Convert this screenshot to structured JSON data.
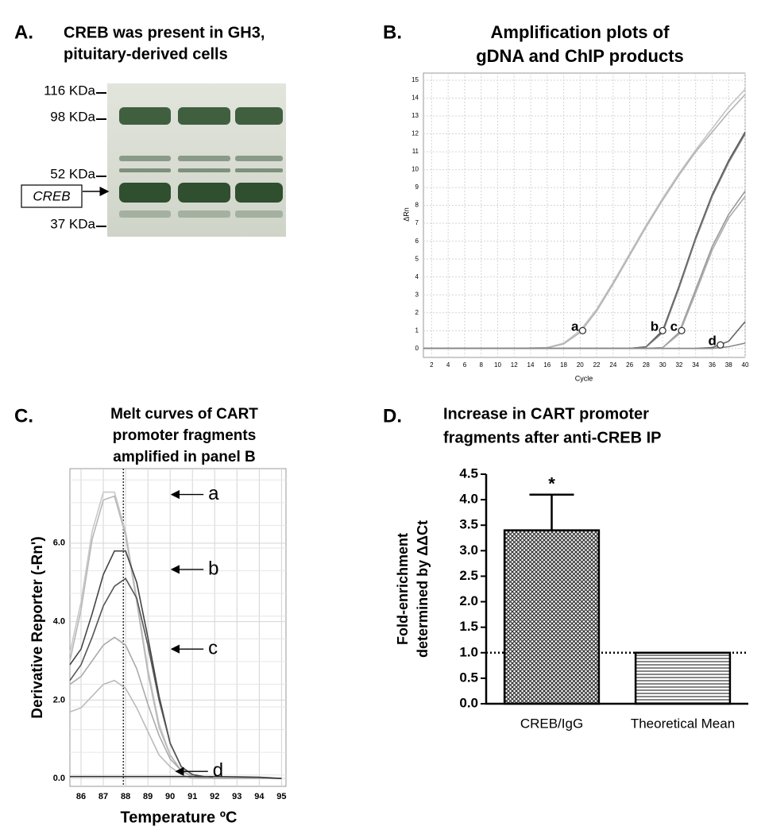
{
  "chart_data": [
    {
      "type": "blot",
      "panel": "A.",
      "title": [
        "CREB was present in GH3,",
        "pituitary-derived cells"
      ],
      "markers": [
        "116 KDa",
        "98 KDa",
        "52 KDa",
        "37 KDa"
      ],
      "band_label": "CREB"
    },
    {
      "type": "line",
      "panel": "B.",
      "title": [
        "Amplification plots of",
        "gDNA and ChIP products"
      ],
      "xlabel": "Cycle",
      "ylabel": "ΔRn",
      "xlim": [
        1,
        40
      ],
      "ylim": [
        -0.5,
        15.4
      ],
      "xticks": [
        2,
        4,
        6,
        8,
        10,
        12,
        14,
        16,
        18,
        20,
        22,
        24,
        26,
        28,
        30,
        32,
        34,
        36,
        38,
        40
      ],
      "yticks": [
        0,
        1,
        2,
        3,
        4,
        5,
        6,
        7,
        8,
        9,
        10,
        11,
        12,
        13,
        14,
        15
      ],
      "grid": true,
      "x": [
        1,
        4,
        8,
        12,
        16,
        18,
        20,
        22,
        24,
        26,
        28,
        30,
        32,
        34,
        36,
        38,
        40
      ],
      "series": [
        {
          "color": "#c4c4c4",
          "values": [
            0,
            0,
            0,
            0,
            0.05,
            0.3,
            1.0,
            2.2,
            3.7,
            5.3,
            6.9,
            8.4,
            9.8,
            11.1,
            12.3,
            13.5,
            14.5
          ]
        },
        {
          "color": "#b4b4b4",
          "values": [
            0,
            0,
            0,
            0,
            0.04,
            0.25,
            0.9,
            2.1,
            3.6,
            5.2,
            6.8,
            8.3,
            9.7,
            11.0,
            12.1,
            13.2,
            14.2
          ]
        },
        {
          "color": "#555555",
          "values": [
            0,
            0,
            0,
            0,
            0,
            0,
            0,
            0,
            0,
            0,
            0.1,
            1.0,
            3.5,
            6.2,
            8.6,
            10.5,
            12.1
          ]
        },
        {
          "color": "#777777",
          "values": [
            0,
            0,
            0,
            0,
            0,
            0,
            0,
            0,
            0,
            0,
            0.08,
            0.9,
            3.4,
            6.1,
            8.5,
            10.4,
            12.0
          ]
        },
        {
          "color": "#999999",
          "values": [
            0,
            0,
            0,
            0,
            0,
            0,
            0,
            0,
            0,
            0,
            0,
            0.05,
            0.9,
            3.3,
            5.7,
            7.5,
            8.8
          ]
        },
        {
          "color": "#aaaaaa",
          "values": [
            0,
            0,
            0,
            0,
            0,
            0,
            0,
            0,
            0,
            0,
            0,
            0.04,
            0.8,
            3.1,
            5.5,
            7.3,
            8.5
          ]
        },
        {
          "color": "#666666",
          "values": [
            0,
            0,
            0,
            0,
            0,
            0,
            0,
            0,
            0,
            0,
            0,
            0,
            0,
            0,
            0.05,
            0.4,
            1.5
          ]
        },
        {
          "color": "#888888",
          "values": [
            0,
            0,
            0,
            0,
            0,
            0,
            0,
            0,
            0,
            0,
            0,
            0,
            0,
            0,
            0,
            0.1,
            0.3
          ]
        }
      ],
      "annotations": [
        {
          "label": "a",
          "x": 20.3,
          "y": 1.0
        },
        {
          "label": "b",
          "x": 30,
          "y": 1.0
        },
        {
          "label": "c",
          "x": 32.3,
          "y": 1.0
        },
        {
          "label": "d",
          "x": 37,
          "y": 0.2
        }
      ]
    },
    {
      "type": "line",
      "panel": "C.",
      "title": [
        "Melt curves of CART",
        "promoter fragments",
        "amplified in panel B"
      ],
      "xlabel": "Temperature ºC",
      "ylabel": "Derivative Reporter (-Rn')",
      "xlim": [
        85.5,
        95.2
      ],
      "ylim": [
        -0.2,
        7.9
      ],
      "xticks": [
        86,
        87,
        88,
        89,
        90,
        91,
        92,
        93,
        94,
        95
      ],
      "yticks": [
        {
          "value": 0,
          "label": "0.0"
        },
        {
          "value": 2,
          "label": "2.0"
        },
        {
          "value": 4,
          "label": "4.0"
        },
        {
          "value": 6,
          "label": "6.0"
        }
      ],
      "grid": true,
      "vline": 87.9,
      "x": [
        85.5,
        86,
        86.5,
        87,
        87.5,
        88,
        88.5,
        89,
        89.5,
        90,
        90.5,
        91,
        92,
        93,
        94,
        95
      ],
      "series": [
        {
          "color": "#c8c8c8",
          "values": [
            3.2,
            4.5,
            6.3,
            7.3,
            7.3,
            6.3,
            4.6,
            2.8,
            1.4,
            0.6,
            0.2,
            0.05,
            0,
            0,
            0,
            0
          ]
        },
        {
          "color": "#b8b8b8",
          "values": [
            3.0,
            4.3,
            6.1,
            7.1,
            7.2,
            6.2,
            4.5,
            2.7,
            1.3,
            0.6,
            0.2,
            0.05,
            0,
            0,
            0,
            0
          ]
        },
        {
          "color": "#444444",
          "values": [
            2.9,
            3.3,
            4.2,
            5.2,
            5.8,
            5.8,
            5.0,
            3.6,
            2.1,
            0.9,
            0.3,
            0.1,
            0,
            0,
            0,
            0
          ]
        },
        {
          "color": "#555555",
          "values": [
            2.5,
            2.9,
            3.6,
            4.4,
            4.9,
            5.1,
            4.6,
            3.4,
            2.0,
            0.9,
            0.3,
            0.1,
            0,
            0,
            0,
            0
          ]
        },
        {
          "color": "#aaaaaa",
          "values": [
            2.4,
            2.6,
            3.0,
            3.4,
            3.6,
            3.4,
            2.8,
            1.9,
            1.1,
            0.5,
            0.2,
            0.05,
            0,
            0,
            0,
            0
          ]
        },
        {
          "color": "#bbbbbb",
          "values": [
            1.7,
            1.8,
            2.1,
            2.4,
            2.5,
            2.3,
            1.8,
            1.2,
            0.6,
            0.3,
            0.1,
            0,
            0,
            0,
            0,
            0
          ]
        },
        {
          "color": "#333333",
          "values": [
            0.05,
            0.05,
            0.05,
            0.05,
            0.05,
            0.05,
            0.05,
            0.05,
            0.05,
            0.05,
            0.05,
            0.05,
            0.05,
            0.04,
            0.03,
            0
          ]
        }
      ],
      "annotations": [
        {
          "label": "a",
          "x": 90.0,
          "y": 7.24
        },
        {
          "label": "b",
          "x": 90.0,
          "y": 5.33
        },
        {
          "label": "c",
          "x": 90.0,
          "y": 3.3
        },
        {
          "label": "d",
          "x": 90.2,
          "y": 0.18
        }
      ]
    },
    {
      "type": "bar",
      "panel": "D.",
      "title": [
        "Increase in CART promoter",
        "fragments after anti-CREB IP"
      ],
      "ylabel": [
        "Fold-enrichment",
        "determined by ΔΔCt"
      ],
      "categories": [
        "CREB/IgG",
        "Theoretical Mean"
      ],
      "values": [
        3.4,
        1.0
      ],
      "errors": [
        0.7,
        null
      ],
      "fills": [
        "crosshatch",
        "hlines"
      ],
      "refline": 1.0,
      "annotations": [
        "*"
      ],
      "ylim": [
        0,
        4.5
      ],
      "yticks": [
        {
          "value": 0,
          "label": "0.0"
        },
        {
          "value": 0.5,
          "label": "0.5"
        },
        {
          "value": 1,
          "label": "1.0"
        },
        {
          "value": 1.5,
          "label": "1.5"
        },
        {
          "value": 2,
          "label": "2.0"
        },
        {
          "value": 2.5,
          "label": "2.5"
        },
        {
          "value": 3,
          "label": "3.0"
        },
        {
          "value": 3.5,
          "label": "3.5"
        },
        {
          "value": 4,
          "label": "4.0"
        },
        {
          "value": 4.5,
          "label": "4.5"
        }
      ]
    }
  ]
}
